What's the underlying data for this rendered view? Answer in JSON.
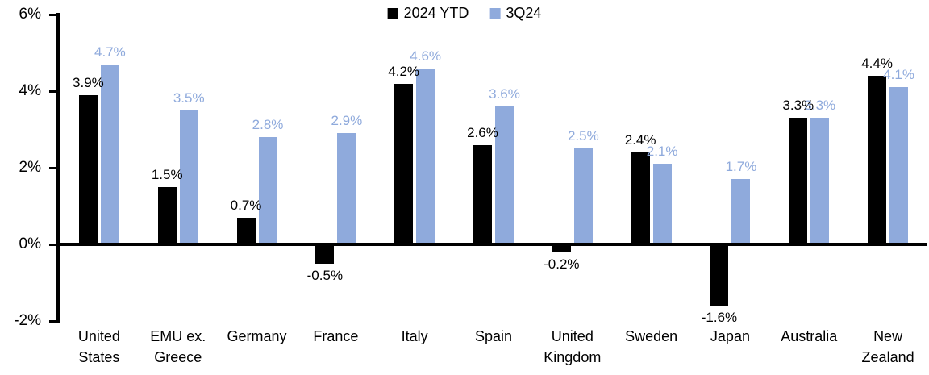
{
  "chart_data": {
    "type": "bar",
    "title": "",
    "xlabel": "",
    "ylabel": "",
    "value_suffix": "%",
    "categories": [
      "United States",
      "EMU ex. Greece",
      "Germany",
      "France",
      "Italy",
      "Spain",
      "United Kingdom",
      "Sweden",
      "Japan",
      "Australia",
      "New Zealand"
    ],
    "series": [
      {
        "name": "2024 YTD",
        "color": "#000000",
        "label_color": "#000000",
        "values": [
          3.9,
          1.5,
          0.7,
          -0.5,
          4.2,
          2.6,
          -0.2,
          2.4,
          -1.6,
          3.3,
          4.4
        ],
        "labels": [
          "3.9%",
          "1.5%",
          "0.7%",
          "-0.5%",
          "4.2%",
          "2.6%",
          "-0.2%",
          "2.4%",
          "-1.6%",
          "3.3%",
          "4.4%"
        ]
      },
      {
        "name": "3Q24",
        "color": "#8FAADC",
        "label_color": "#8FAADC",
        "values": [
          4.7,
          3.5,
          2.8,
          2.9,
          4.6,
          3.6,
          2.5,
          2.1,
          1.7,
          3.3,
          4.1
        ],
        "labels": [
          "4.7%",
          "3.5%",
          "2.8%",
          "2.9%",
          "4.6%",
          "3.6%",
          "2.5%",
          "2.1%",
          "1.7%",
          "3.3%",
          "4.1%"
        ]
      }
    ],
    "ylim": [
      -2,
      6
    ],
    "ytick_values": [
      -2,
      0,
      2,
      4,
      6
    ],
    "ytick_labels": [
      "-2%",
      "0%",
      "2%",
      "4%",
      "6%"
    ],
    "grid": false,
    "legend_position": "top-center",
    "axis_color": "#000000",
    "background_color": "#ffffff"
  }
}
